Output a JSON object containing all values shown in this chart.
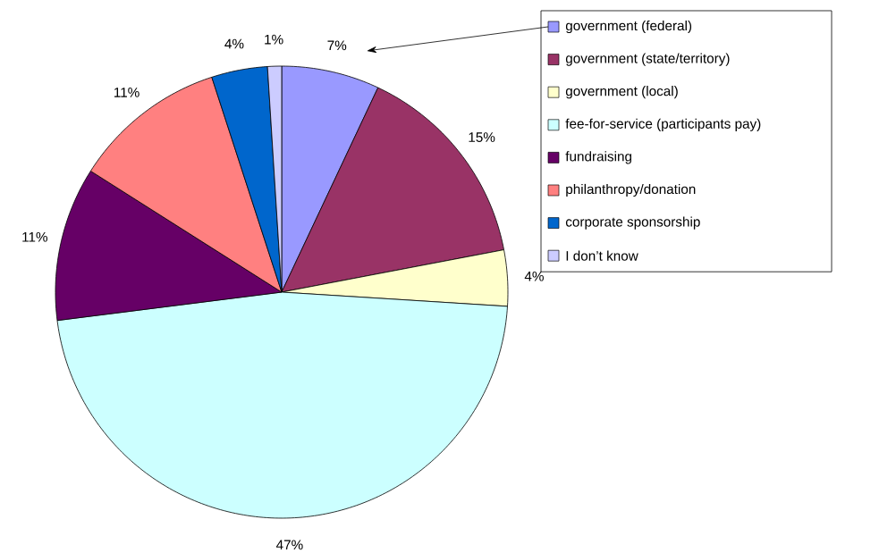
{
  "chart_data": {
    "type": "pie",
    "categories": [
      "government (federal)",
      "government (state/territory)",
      "government (local)",
      "fee-for-service (participants pay)",
      "fundraising",
      "philanthropy/donation",
      "corporate sponsorship",
      "I don’t know"
    ],
    "values": [
      7,
      15,
      4,
      47,
      11,
      11,
      4,
      1
    ],
    "value_labels": [
      "7%",
      "15%",
      "4%",
      "47%",
      "11%",
      "11%",
      "4%",
      "1%"
    ],
    "colors": [
      "#9999ff",
      "#993366",
      "#ffffcc",
      "#ccffff",
      "#660066",
      "#ff8080",
      "#0066cc",
      "#ccccff"
    ],
    "legend": "top right"
  }
}
